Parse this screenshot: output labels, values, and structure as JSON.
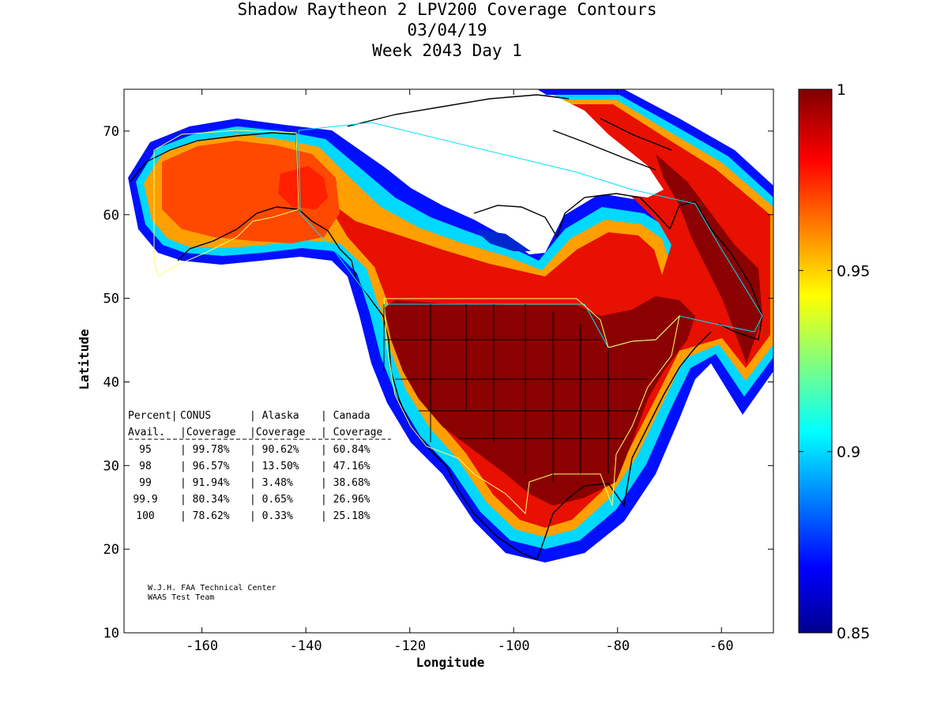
{
  "title": {
    "line1": "Shadow Raytheon 2 LPV200 Coverage Contours",
    "line2": "03/04/19",
    "line3": "Week 2043 Day 1"
  },
  "axes": {
    "xlabel": "Longitude",
    "ylabel": "Latitude",
    "xlim": [
      -175,
      -50
    ],
    "ylim": [
      10,
      75
    ],
    "xticks": [
      -160,
      -140,
      -120,
      -100,
      -80,
      -60
    ],
    "yticks": [
      10,
      20,
      30,
      40,
      50,
      60,
      70
    ]
  },
  "colorbar": {
    "min": 0.85,
    "max": 1,
    "ticks": [
      "1",
      "0.95",
      "0.9",
      "0.85"
    ],
    "colormap": "jet"
  },
  "table": {
    "header1": [
      "Percent|",
      "CONUS",
      "| Alaska",
      "| Canada"
    ],
    "header2": [
      " Avail.",
      "|Coverage",
      "|Coverage",
      "| Coverage"
    ],
    "rows": [
      [
        "95",
        "| 99.78%",
        "| 90.62%",
        "| 60.84%"
      ],
      [
        "98",
        "| 96.57%",
        "| 13.50%",
        "| 47.16%"
      ],
      [
        "99",
        "| 91.94%",
        "| 3.48%",
        "| 38.68%"
      ],
      [
        "99.9",
        "| 80.34%",
        "| 0.65%",
        "| 26.96%"
      ],
      [
        "100",
        "| 78.62%",
        "| 0.33%",
        "| 25.18%"
      ]
    ]
  },
  "credit": {
    "line1": "W.J.H. FAA Technical Center",
    "line2": "WAAS Test Team"
  }
}
